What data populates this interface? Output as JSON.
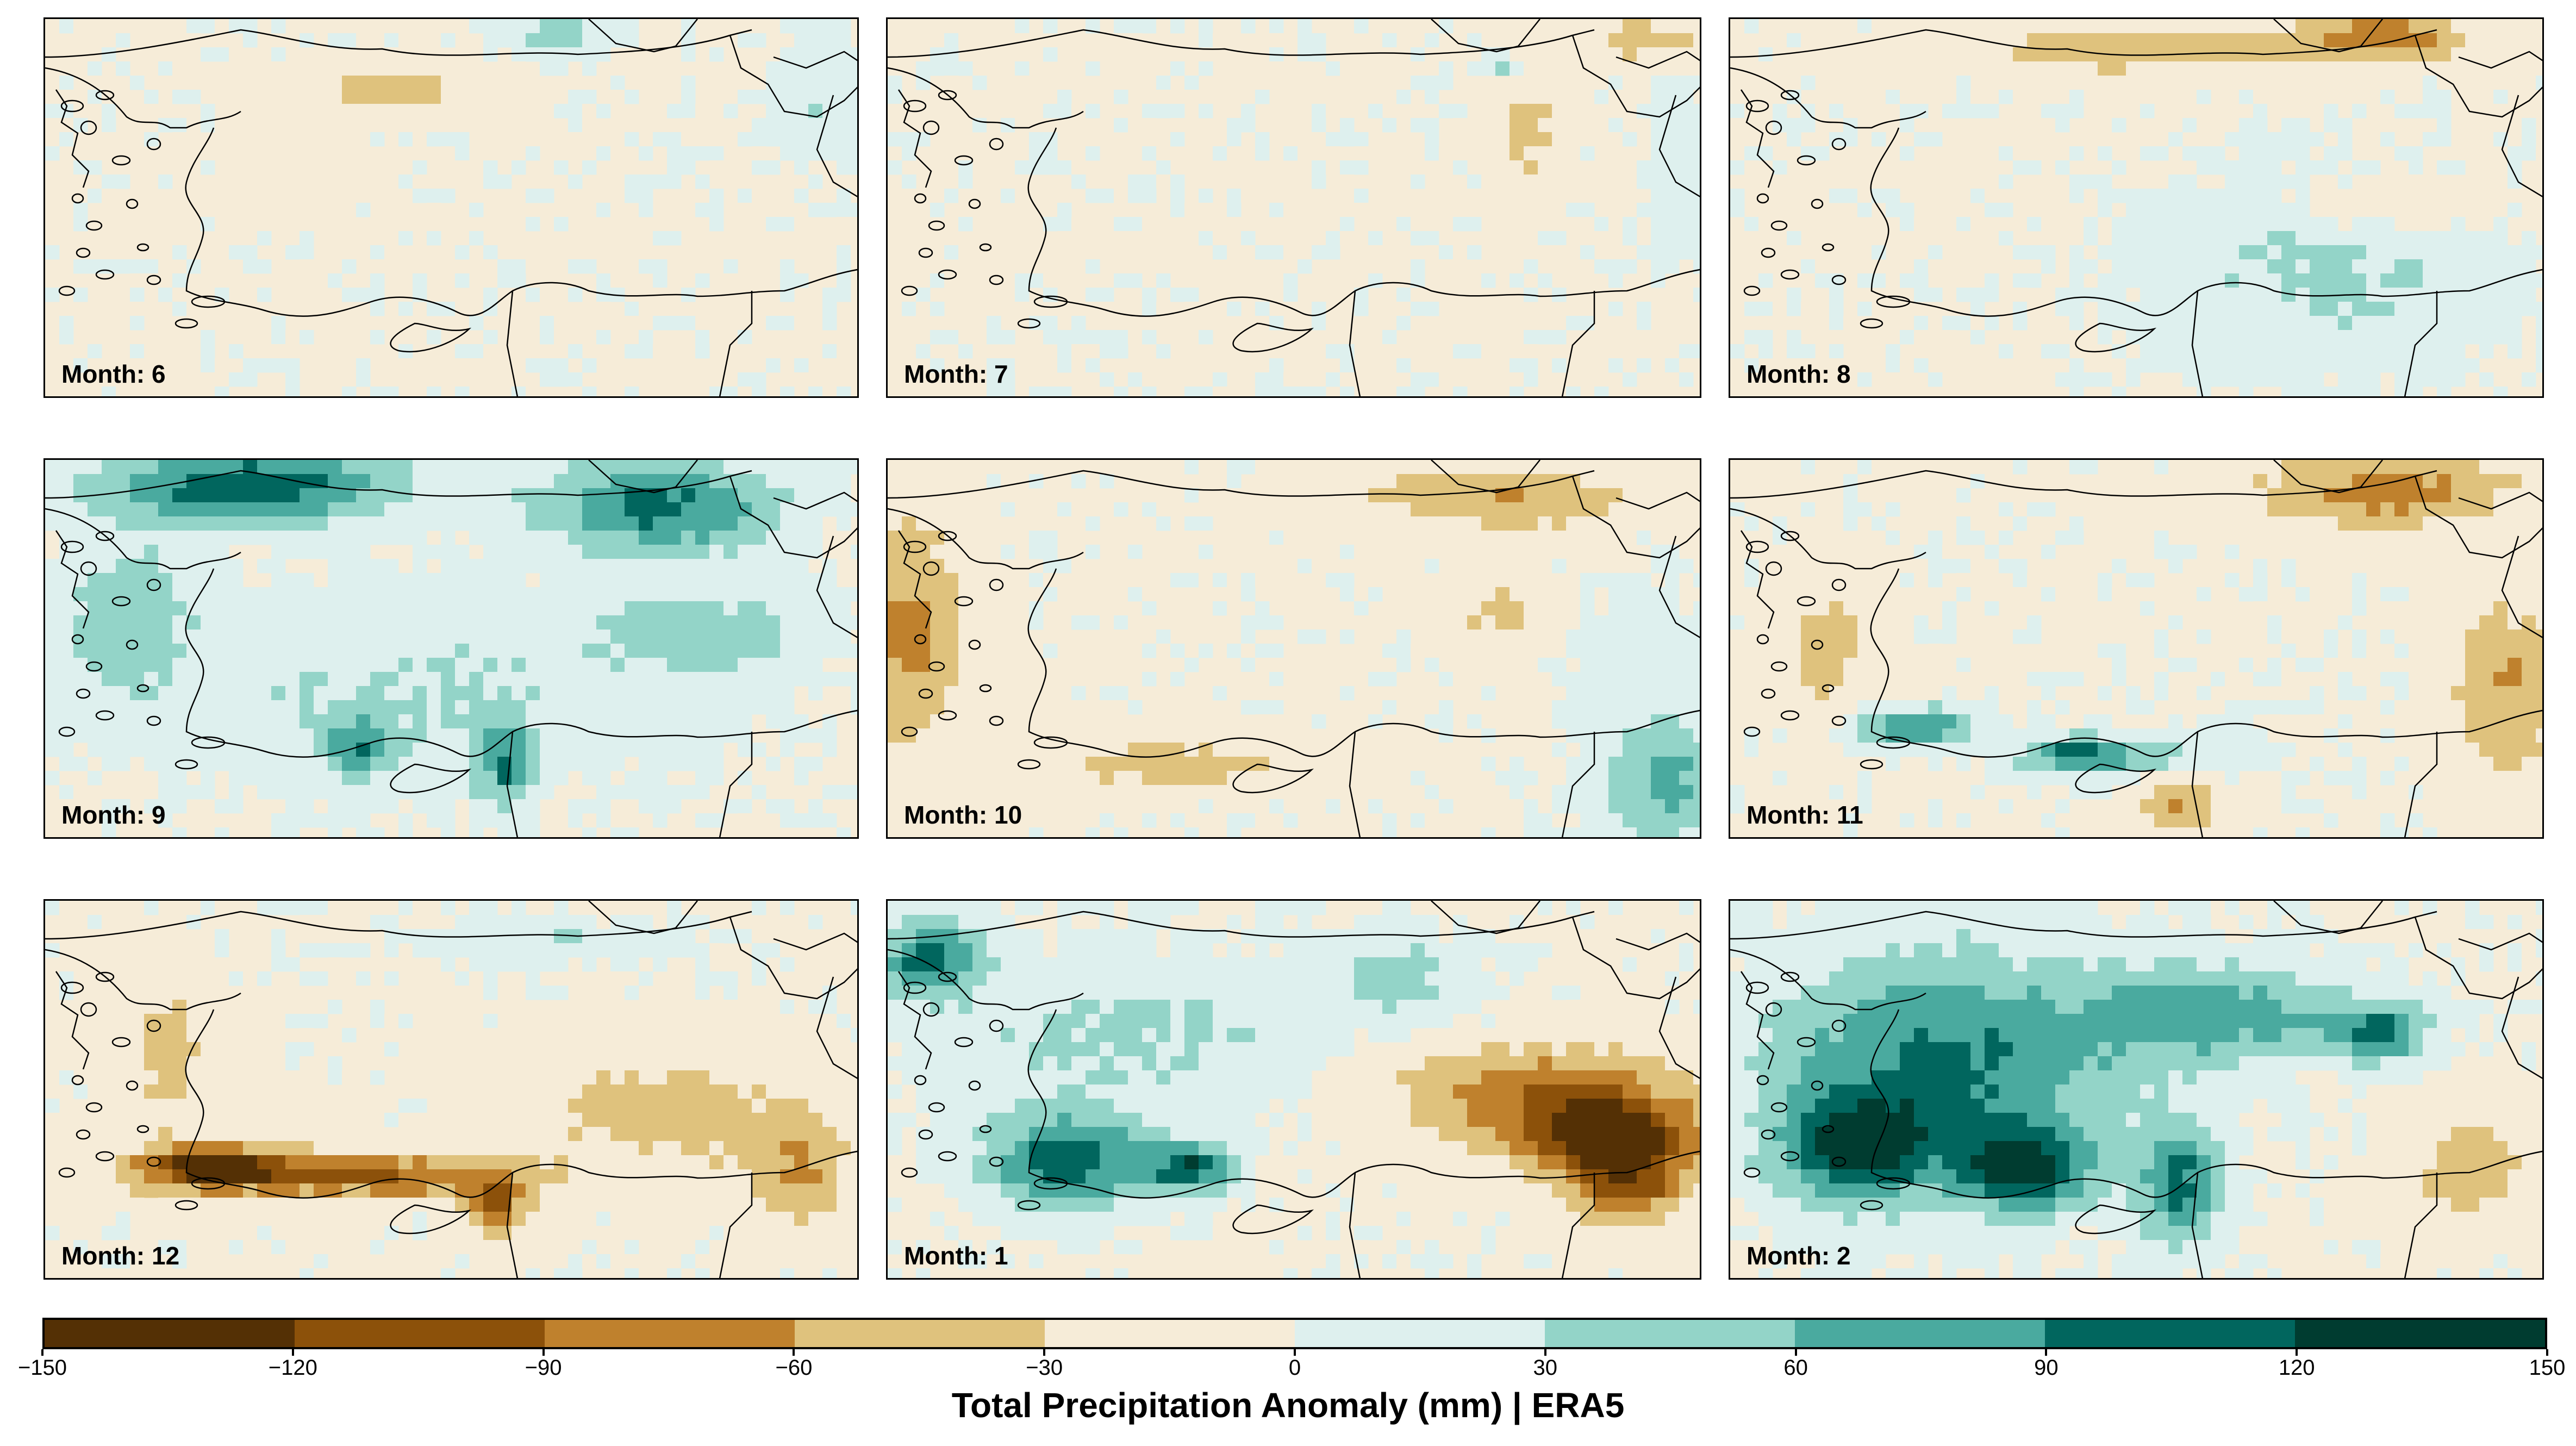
{
  "panels": [
    {
      "label": "Month: 6",
      "blobs": [
        [
          0.42,
          0.18,
          0.12,
          0.06,
          -45
        ],
        [
          0.62,
          0.05,
          0.06,
          0.05,
          45
        ],
        [
          0.95,
          0.2,
          0.05,
          0.15,
          30
        ],
        [
          0.3,
          0.4,
          0.05,
          0.1,
          -30
        ]
      ]
    },
    {
      "label": "Month: 7",
      "blobs": [
        [
          0.92,
          0.05,
          0.08,
          0.06,
          -50
        ],
        [
          0.78,
          0.3,
          0.04,
          0.15,
          -40
        ],
        [
          0.75,
          0.13,
          0.02,
          0.03,
          60
        ],
        [
          0.97,
          0.4,
          0.04,
          0.2,
          25
        ]
      ]
    },
    {
      "label": "Month: 8",
      "blobs": [
        [
          0.5,
          0.08,
          0.22,
          0.06,
          -55
        ],
        [
          0.8,
          0.05,
          0.1,
          0.06,
          -80
        ],
        [
          0.72,
          0.7,
          0.22,
          0.25,
          25
        ],
        [
          0.75,
          0.55,
          0.2,
          0.18,
          20
        ],
        [
          0.8,
          0.5,
          0.15,
          0.1,
          -35
        ]
      ]
    },
    {
      "label": "Month: 9",
      "blobs": [
        [
          0.25,
          0.07,
          0.18,
          0.1,
          110
        ],
        [
          0.75,
          0.12,
          0.14,
          0.12,
          100
        ],
        [
          0.45,
          0.6,
          0.35,
          0.25,
          30
        ],
        [
          0.38,
          0.75,
          0.04,
          0.08,
          80
        ],
        [
          0.56,
          0.8,
          0.03,
          0.12,
          80
        ],
        [
          0.1,
          0.4,
          0.08,
          0.2,
          45
        ],
        [
          0.8,
          0.45,
          0.12,
          0.1,
          50
        ]
      ]
    },
    {
      "label": "Month: 10",
      "blobs": [
        [
          0.03,
          0.45,
          0.06,
          0.3,
          -70
        ],
        [
          0.35,
          0.8,
          0.15,
          0.06,
          -50
        ],
        [
          0.75,
          0.1,
          0.18,
          0.08,
          -60
        ],
        [
          0.95,
          0.85,
          0.08,
          0.15,
          70
        ],
        [
          0.92,
          0.5,
          0.08,
          0.2,
          20
        ],
        [
          0.75,
          0.4,
          0.07,
          0.08,
          -40
        ]
      ]
    },
    {
      "label": "Month: 11",
      "blobs": [
        [
          0.8,
          0.08,
          0.15,
          0.1,
          -75
        ],
        [
          0.95,
          0.6,
          0.07,
          0.25,
          -60
        ],
        [
          0.22,
          0.7,
          0.08,
          0.05,
          90
        ],
        [
          0.42,
          0.77,
          0.06,
          0.04,
          80
        ],
        [
          0.5,
          0.78,
          0.14,
          0.06,
          40
        ],
        [
          0.55,
          0.9,
          0.05,
          0.08,
          -60
        ],
        [
          0.12,
          0.5,
          0.05,
          0.18,
          -45
        ]
      ]
    },
    {
      "label": "Month: 12",
      "blobs": [
        [
          0.2,
          0.7,
          0.1,
          0.06,
          -120
        ],
        [
          0.4,
          0.72,
          0.18,
          0.06,
          -95
        ],
        [
          0.55,
          0.8,
          0.04,
          0.08,
          -90
        ],
        [
          0.75,
          0.55,
          0.15,
          0.15,
          -45
        ],
        [
          0.15,
          0.4,
          0.05,
          0.2,
          -45
        ],
        [
          0.92,
          0.7,
          0.07,
          0.15,
          -60
        ],
        [
          0.6,
          0.1,
          0.15,
          0.05,
          30
        ]
      ]
    },
    {
      "label": "Month: 1",
      "blobs": [
        [
          0.05,
          0.15,
          0.06,
          0.1,
          100
        ],
        [
          0.22,
          0.68,
          0.1,
          0.12,
          110
        ],
        [
          0.37,
          0.7,
          0.05,
          0.06,
          110
        ],
        [
          0.88,
          0.62,
          0.12,
          0.1,
          -120
        ],
        [
          0.8,
          0.5,
          0.18,
          0.12,
          -80
        ],
        [
          0.9,
          0.75,
          0.08,
          0.1,
          -90
        ],
        [
          0.3,
          0.35,
          0.25,
          0.2,
          35
        ],
        [
          0.63,
          0.2,
          0.08,
          0.1,
          40
        ]
      ]
    },
    {
      "label": "Month: 2",
      "blobs": [
        [
          0.25,
          0.45,
          0.2,
          0.3,
          100
        ],
        [
          0.15,
          0.65,
          0.08,
          0.12,
          120
        ],
        [
          0.36,
          0.7,
          0.08,
          0.1,
          120
        ],
        [
          0.55,
          0.3,
          0.15,
          0.15,
          60
        ],
        [
          0.79,
          0.35,
          0.05,
          0.07,
          90
        ],
        [
          0.55,
          0.75,
          0.05,
          0.15,
          100
        ],
        [
          0.9,
          0.7,
          0.07,
          0.15,
          -50
        ],
        [
          0.7,
          0.3,
          0.15,
          0.1,
          35
        ]
      ]
    }
  ],
  "colorbar": {
    "colors": [
      "#543005",
      "#8c510a",
      "#bf812d",
      "#dfc27d",
      "#f6e8c3",
      "#eaf5f3",
      "#c7eae5",
      "#80cdc1",
      "#35978f",
      "#01665e",
      "#003c30"
    ],
    "bins": [
      -150,
      -120,
      -90,
      -60,
      -30,
      0,
      0,
      30,
      60,
      90,
      120,
      150
    ],
    "tick_labels": [
      "−150",
      "−120",
      "−90",
      "−60",
      "−30",
      "0",
      "30",
      "60",
      "90",
      "120",
      "150"
    ],
    "title": "Total Precipitation Anomaly (mm) | ERA5"
  }
}
